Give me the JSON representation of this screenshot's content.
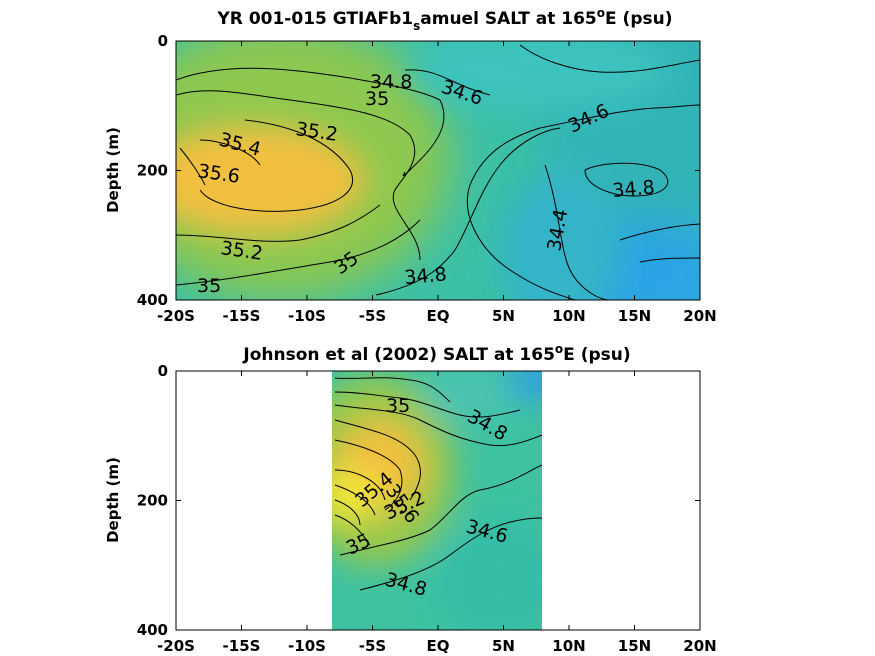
{
  "chart_data": [
    {
      "type": "heatmap",
      "title_main": "YR 001-015 GTIAFb1",
      "title_sub": "s",
      "title_rest": "amuel SALT at 165",
      "title_deg": "o",
      "title_end": "E (psu)",
      "ylabel": "Depth (m)",
      "x_ticks": [
        "-20S",
        "-15S",
        "-10S",
        "-5S",
        "EQ",
        "5N",
        "10N",
        "15N",
        "20N"
      ],
      "x_tick_values": [
        -20,
        -15,
        -10,
        -5,
        0,
        5,
        10,
        15,
        20
      ],
      "y_ticks": [
        "0",
        "200",
        "400"
      ],
      "y_tick_values": [
        0,
        200,
        400
      ],
      "xlim": [
        -20,
        20
      ],
      "ylim": [
        0,
        400
      ],
      "data_extent": [
        -20,
        20
      ],
      "contour_levels": [
        34.4,
        34.6,
        34.8,
        35.0,
        35.2,
        35.4,
        35.6
      ],
      "contour_labels": [
        "34.8",
        "34.6",
        "35",
        "35.2",
        "35.4",
        "35.6",
        "34.6",
        "34.8",
        "34.4",
        "35.2",
        "35",
        "34.8",
        "35"
      ],
      "colors": {
        "salty": "#f7c63a",
        "mid": "#9cc84a",
        "fresh": "#2aa6e6"
      }
    },
    {
      "type": "heatmap",
      "title_main": "Johnson et al (2002) SALT at 165",
      "title_deg": "o",
      "title_end": "E (psu)",
      "ylabel": "Depth (m)",
      "x_ticks": [
        "-20S",
        "-15S",
        "-10S",
        "-5S",
        "EQ",
        "5N",
        "10N",
        "15N",
        "20N"
      ],
      "x_tick_values": [
        -20,
        -15,
        -10,
        -5,
        0,
        5,
        10,
        15,
        20
      ],
      "y_ticks": [
        "0",
        "200",
        "400"
      ],
      "y_tick_values": [
        0,
        200,
        400
      ],
      "xlim": [
        -20,
        20
      ],
      "ylim": [
        0,
        400
      ],
      "data_extent": [
        -8,
        8
      ],
      "contour_levels": [
        34.6,
        34.8,
        35.0,
        35.2,
        35.4,
        35.6
      ],
      "contour_labels": [
        "35",
        "34.8",
        "35.6",
        "35.4",
        "35.2",
        "34.6",
        "35",
        "34.8"
      ],
      "colors": {
        "salty": "#f7e63a",
        "mid": "#9cc84a",
        "fresh": "#2aa6e6"
      }
    }
  ]
}
